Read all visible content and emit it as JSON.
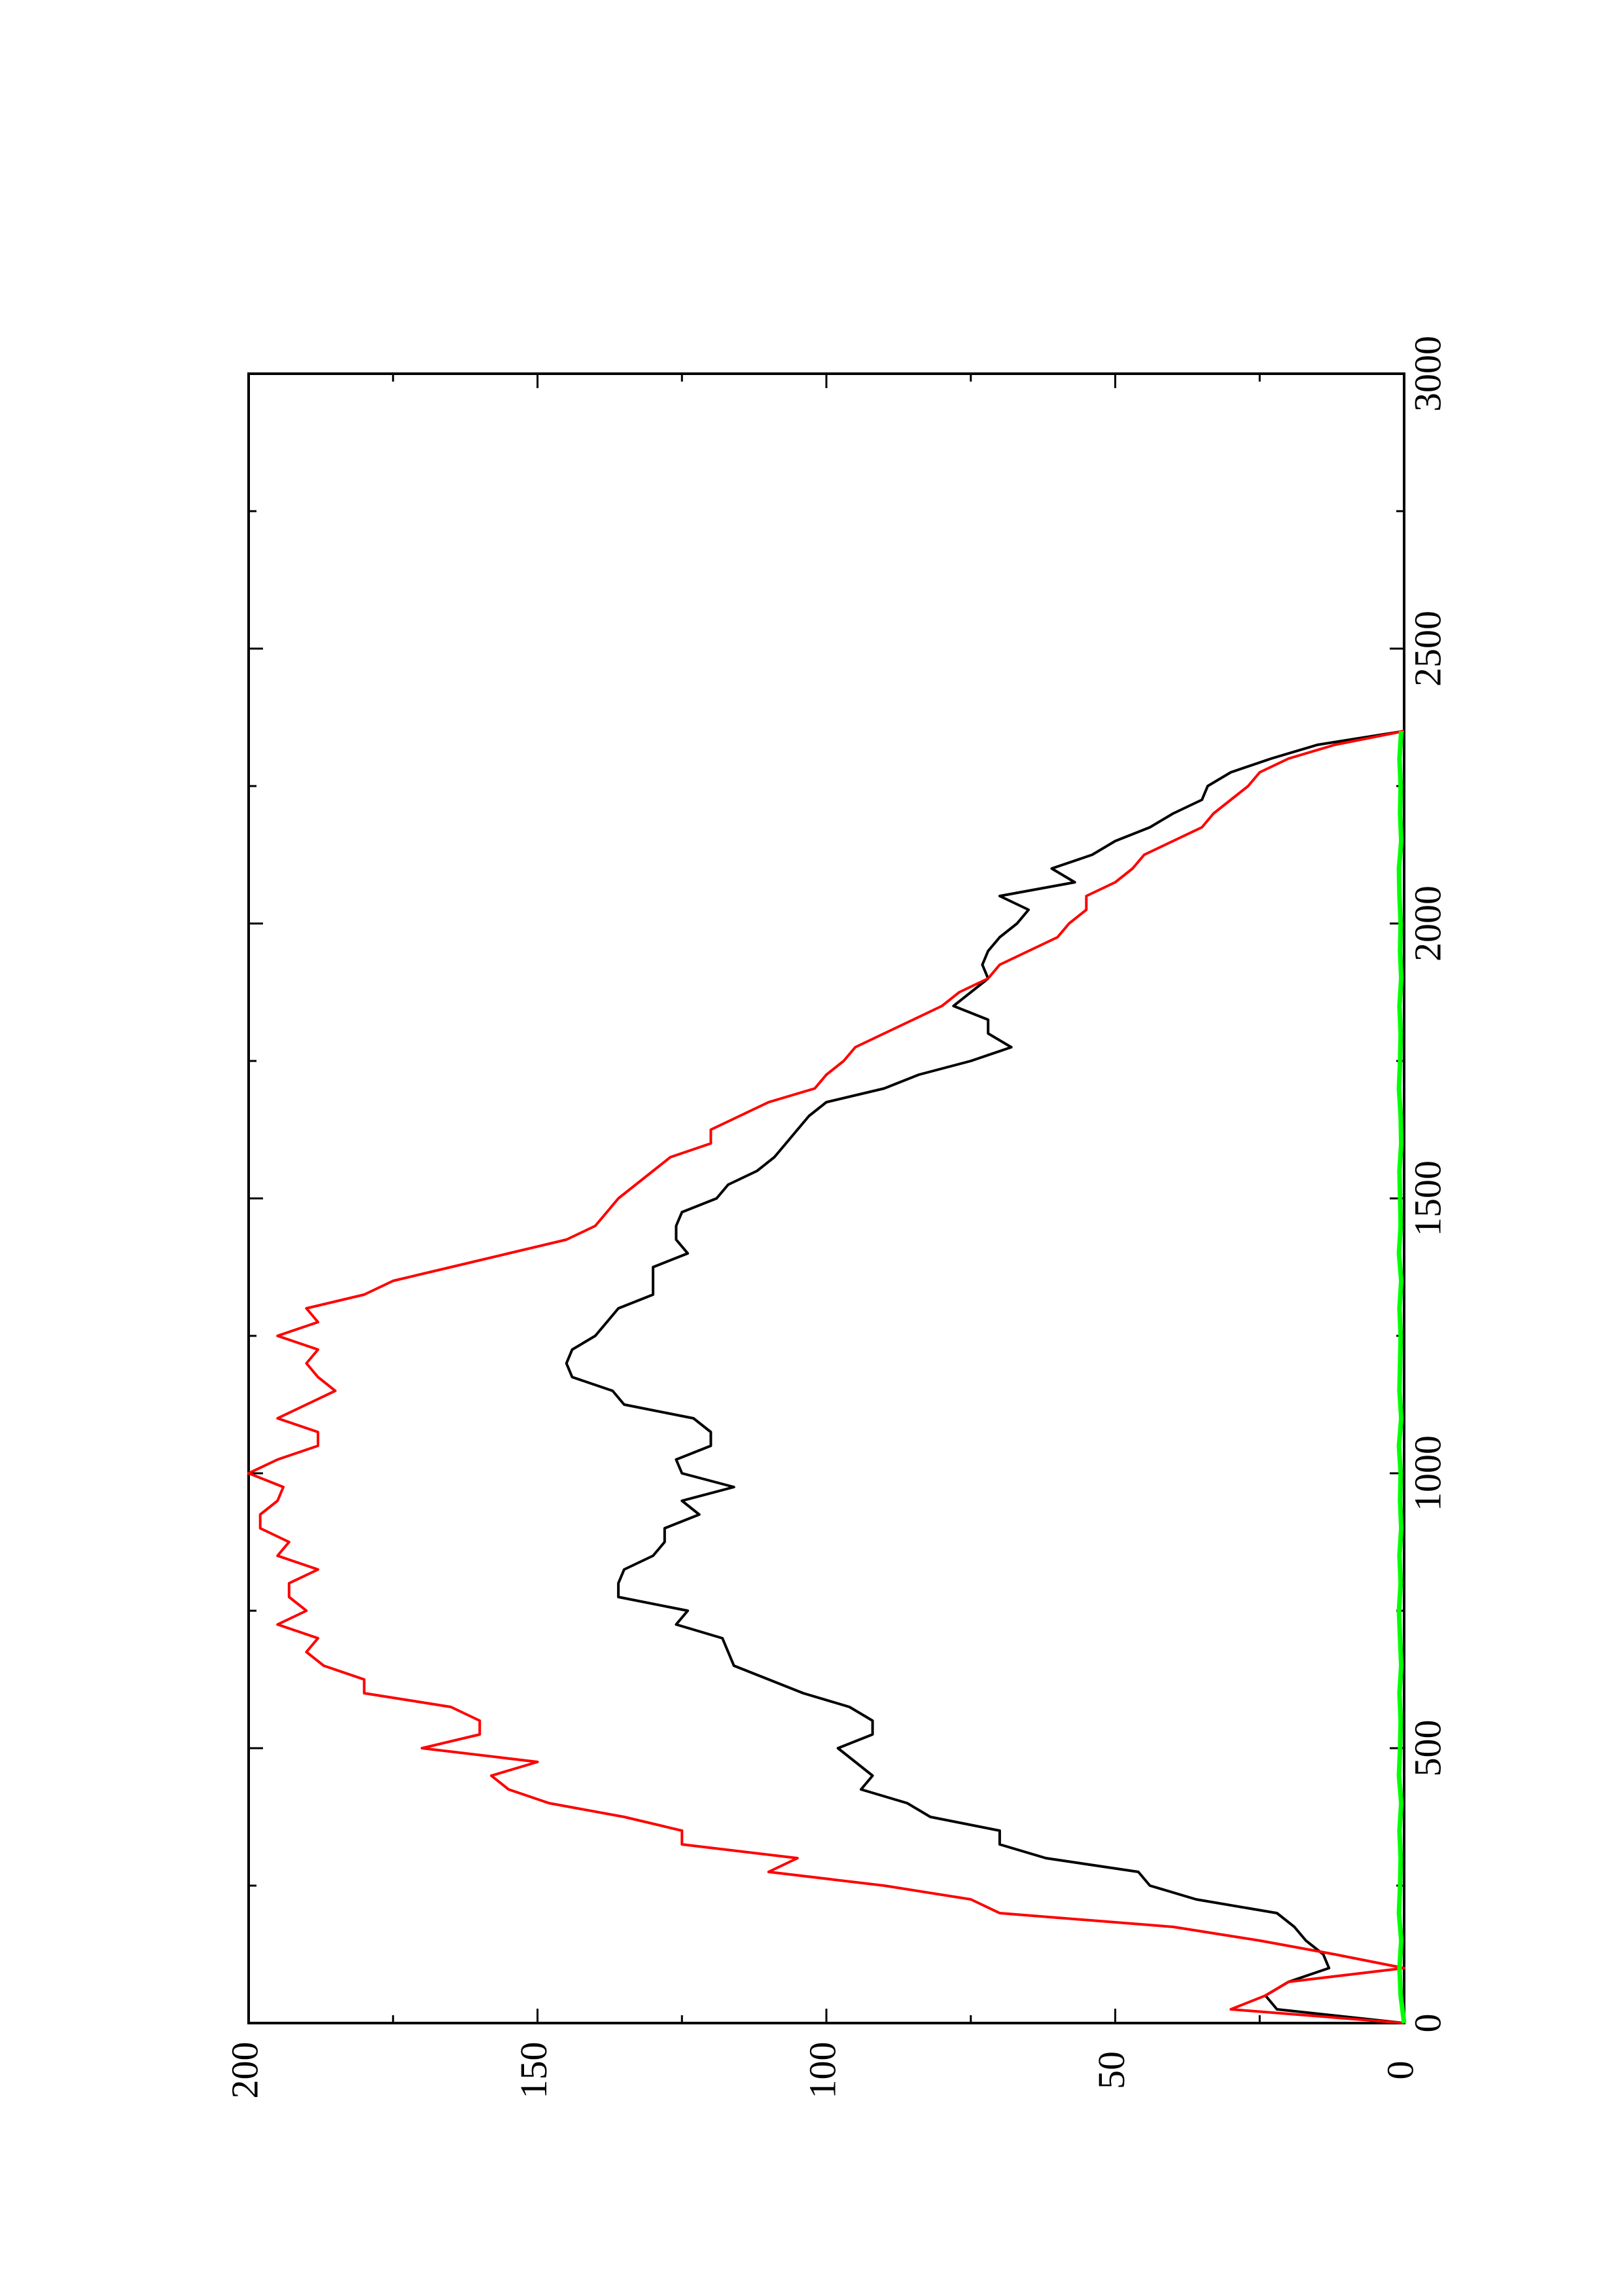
{
  "chart_data": {
    "type": "line",
    "orientation": "rotated-90-ccw",
    "title": "",
    "xlabel": "",
    "ylabel": "",
    "xlim": [
      0,
      3000
    ],
    "ylim": [
      0,
      200
    ],
    "x_ticks": [
      "0",
      "500",
      "1000",
      "1500",
      "2000",
      "2500",
      "3000"
    ],
    "y_ticks": [
      "0",
      "50",
      "100",
      "150",
      "200"
    ],
    "grid": false,
    "legend": "none",
    "series": [
      {
        "color": "#000000",
        "x": [
          0,
          25,
          50,
          75,
          100,
          125,
          150,
          175,
          200,
          225,
          250,
          275,
          300,
          325,
          350,
          375,
          400,
          425,
          450,
          475,
          500,
          525,
          550,
          575,
          600,
          625,
          650,
          675,
          700,
          725,
          750,
          775,
          800,
          825,
          850,
          875,
          900,
          925,
          950,
          975,
          1000,
          1025,
          1050,
          1075,
          1100,
          1125,
          1150,
          1175,
          1200,
          1225,
          1250,
          1275,
          1300,
          1325,
          1350,
          1375,
          1400,
          1425,
          1450,
          1475,
          1500,
          1525,
          1550,
          1575,
          1600,
          1625,
          1650,
          1675,
          1700,
          1725,
          1750,
          1775,
          1800,
          1825,
          1850,
          1875,
          1900,
          1925,
          1950,
          1975,
          2000,
          2025,
          2050,
          2075,
          2100,
          2125,
          2150,
          2175,
          2200,
          2225,
          2250,
          2275,
          2300,
          2325,
          2350
        ],
        "y": [
          0,
          22,
          24,
          20,
          13,
          14,
          17,
          19,
          22,
          36,
          44,
          46,
          62,
          70,
          70,
          82,
          86,
          94,
          92,
          95,
          98,
          92,
          92,
          96,
          104,
          110,
          116,
          117,
          118,
          126,
          124,
          136,
          136,
          135,
          130,
          128,
          128,
          122,
          125,
          116,
          125,
          126,
          120,
          120,
          123,
          135,
          137,
          144,
          145,
          144,
          140,
          138,
          136,
          130,
          130,
          130,
          124,
          126,
          126,
          125,
          119,
          117,
          112,
          109,
          107,
          105,
          103,
          100,
          90,
          84,
          75,
          68,
          72,
          72,
          78,
          75,
          72,
          73,
          72,
          70,
          67,
          65,
          70,
          57,
          61,
          54,
          50,
          44,
          40,
          35,
          34,
          30,
          23,
          15,
          0
        ]
      },
      {
        "color": "#ff0000",
        "x": [
          0,
          25,
          50,
          75,
          100,
          125,
          150,
          175,
          200,
          225,
          250,
          275,
          300,
          325,
          350,
          375,
          400,
          425,
          450,
          475,
          500,
          525,
          550,
          575,
          600,
          625,
          650,
          675,
          700,
          725,
          750,
          775,
          800,
          825,
          850,
          875,
          900,
          925,
          950,
          975,
          1000,
          1025,
          1050,
          1075,
          1100,
          1125,
          1150,
          1175,
          1200,
          1225,
          1250,
          1275,
          1300,
          1325,
          1350,
          1375,
          1400,
          1425,
          1450,
          1475,
          1500,
          1525,
          1550,
          1575,
          1600,
          1625,
          1650,
          1675,
          1700,
          1725,
          1750,
          1775,
          1800,
          1825,
          1850,
          1875,
          1900,
          1925,
          1950,
          1975,
          2000,
          2025,
          2050,
          2075,
          2100,
          2125,
          2150,
          2175,
          2200,
          2225,
          2250,
          2275,
          2300,
          2325,
          2350
        ],
        "y": [
          0,
          30,
          24,
          20,
          0,
          12,
          25,
          40,
          70,
          75,
          90,
          110,
          105,
          125,
          125,
          135,
          148,
          155,
          158,
          150,
          170,
          160,
          160,
          165,
          180,
          180,
          187,
          190,
          188,
          195,
          190,
          193,
          193,
          188,
          195,
          193,
          198,
          198,
          195,
          194,
          200,
          195,
          188,
          188,
          195,
          190,
          185,
          188,
          190,
          188,
          195,
          188,
          190,
          180,
          175,
          165,
          155,
          145,
          140,
          138,
          136,
          133,
          130,
          127,
          120,
          120,
          115,
          110,
          102,
          100,
          97,
          95,
          90,
          85,
          80,
          77,
          72,
          70,
          65,
          60,
          58,
          55,
          55,
          50,
          47,
          45,
          40,
          35,
          33,
          30,
          27,
          25,
          20,
          12,
          0
        ]
      },
      {
        "color": "#00ff00",
        "x": [
          0,
          50,
          100,
          150,
          200,
          250,
          300,
          350,
          400,
          450,
          500,
          550,
          600,
          650,
          700,
          750,
          800,
          850,
          900,
          950,
          1000,
          1050,
          1100,
          1150,
          1200,
          1250,
          1300,
          1350,
          1400,
          1450,
          1500,
          1550,
          1600,
          1650,
          1700,
          1750,
          1800,
          1850,
          1900,
          1950,
          2000,
          2050,
          2100,
          2150,
          2200,
          2250,
          2300,
          2350
        ],
        "y": [
          0,
          0.6,
          0.8,
          0.5,
          0.9,
          0.7,
          0.6,
          0.8,
          0.5,
          0.9,
          0.7,
          0.6,
          0.8,
          0.5,
          0.7,
          0.9,
          0.6,
          0.8,
          0.5,
          0.7,
          0.6,
          0.9,
          0.5,
          0.8,
          0.7,
          0.6,
          0.8,
          0.5,
          0.9,
          0.6,
          0.7,
          0.8,
          0.5,
          0.6,
          0.9,
          0.7,
          0.6,
          0.8,
          0.5,
          0.7,
          0.6,
          0.8,
          0.9,
          0.5,
          0.7,
          0.6,
          0.8,
          0.5
        ]
      }
    ]
  }
}
